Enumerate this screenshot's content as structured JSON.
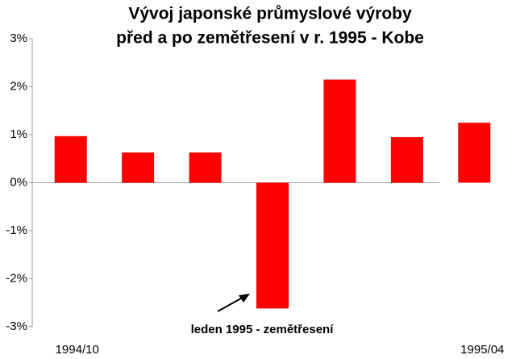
{
  "chart_data": {
    "type": "bar",
    "title": [
      "Vývoj japonské průmyslové výroby",
      "před a po zemětřesení v r. 1995 - Kobe"
    ],
    "categories": [
      "1994/10",
      null,
      null,
      null,
      null,
      null,
      "1995/04"
    ],
    "values": [
      0.97,
      0.63,
      0.63,
      -2.62,
      2.15,
      0.95,
      1.25
    ],
    "color": "#ff0000",
    "ylim": [
      -3,
      3
    ],
    "yticks": [
      {
        "value": -3,
        "label": "-3%"
      },
      {
        "value": -2,
        "label": "-2%"
      },
      {
        "value": -1,
        "label": "-1%"
      },
      {
        "value": 0,
        "label": "0%"
      },
      {
        "value": 1,
        "label": "1%"
      },
      {
        "value": 2,
        "label": "2%"
      },
      {
        "value": 3,
        "label": "3%"
      }
    ],
    "annotation": "leden 1995 - zemětřesení",
    "grid": false
  }
}
